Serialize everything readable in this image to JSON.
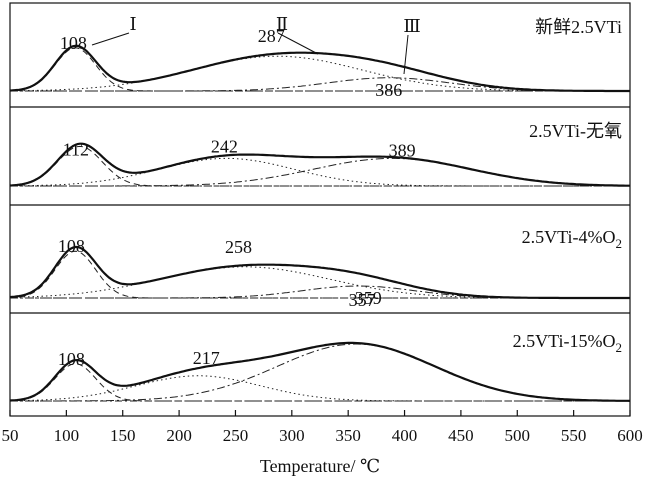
{
  "chart_data": {
    "type": "line",
    "xlabel": "Temperature/ ℃",
    "xlim": [
      50,
      600
    ],
    "xticks": [
      50,
      100,
      150,
      200,
      250,
      300,
      350,
      400,
      450,
      500,
      550,
      600
    ],
    "xtick_labels": [
      "50",
      "100",
      "150",
      "200",
      "250",
      "300",
      "350",
      "400",
      "450",
      "500",
      "550",
      "600"
    ],
    "peak_markers": [
      "Ⅰ",
      "Ⅱ",
      "Ⅲ"
    ],
    "panels": [
      {
        "label": "新鲜2.5VTi",
        "label_sub": "",
        "peaks": [
          {
            "center": 108,
            "label": "108",
            "amp": 0.72,
            "sigma": 18,
            "style": "dashed"
          },
          {
            "center": 287,
            "label": "287",
            "amp": 0.58,
            "sigma": 75,
            "style": "dotted"
          },
          {
            "center": 386,
            "label": "386",
            "amp": 0.22,
            "sigma": 55,
            "style": "dashdot"
          }
        ]
      },
      {
        "label": "2.5VTi-无氧",
        "label_sub": "",
        "peaks": [
          {
            "center": 112,
            "label": "112",
            "amp": 0.66,
            "sigma": 20,
            "style": "dashed"
          },
          {
            "center": 242,
            "label": "242",
            "amp": 0.46,
            "sigma": 60,
            "style": "dotted"
          },
          {
            "center": 389,
            "label": "389",
            "amp": 0.46,
            "sigma": 70,
            "style": "dashdot"
          }
        ]
      },
      {
        "label": "2.5VTi-4%O",
        "label_sub": "2",
        "peaks": [
          {
            "center": 108,
            "label": "108",
            "amp": 0.78,
            "sigma": 18,
            "style": "dashed"
          },
          {
            "center": 258,
            "label": "258",
            "amp": 0.52,
            "sigma": 75,
            "style": "dotted"
          },
          {
            "center": 359,
            "label": "359",
            "amp": 0.2,
            "sigma": 50,
            "style": "dashdot"
          }
        ]
      },
      {
        "label": "2.5VTi-15%O",
        "label_sub": "2",
        "peaks": [
          {
            "center": 108,
            "label": "108",
            "amp": 0.62,
            "sigma": 18,
            "style": "dashed"
          },
          {
            "center": 217,
            "label": "217",
            "amp": 0.42,
            "sigma": 55,
            "style": "dotted"
          },
          {
            "center": 357,
            "label": "357",
            "amp": 0.95,
            "sigma": 70,
            "style": "dashdot"
          }
        ]
      }
    ]
  }
}
